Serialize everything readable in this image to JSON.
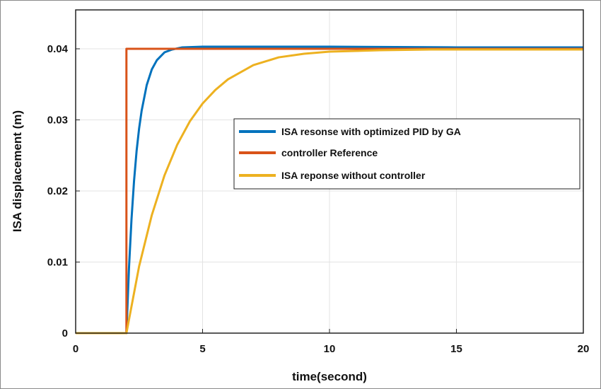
{
  "chart_data": {
    "type": "line",
    "title": "",
    "xlabel": "time(second)",
    "ylabel": "ISA displacement (m)",
    "xlim": [
      0,
      20
    ],
    "ylim": [
      0,
      0.04
    ],
    "x_ticks": [
      0,
      5,
      10,
      15,
      20
    ],
    "x_tick_labels": [
      "0",
      "5",
      "10",
      "15",
      "20"
    ],
    "y_ticks": [
      0,
      0.01,
      0.02,
      0.03,
      0.04
    ],
    "y_tick_labels": [
      "0",
      "0.01",
      "0.02",
      "0.03",
      "0.04"
    ],
    "grid": true,
    "legend_position": "right",
    "series": [
      {
        "name": "ISA resonse with optimized PID by GA",
        "color": "#0072BD",
        "x": [
          0,
          2,
          2.1,
          2.2,
          2.3,
          2.4,
          2.5,
          2.6,
          2.8,
          3.0,
          3.2,
          3.5,
          3.8,
          4.2,
          5,
          7,
          10,
          15,
          20
        ],
        "y": [
          0,
          0,
          0.0091,
          0.016,
          0.0214,
          0.0256,
          0.0288,
          0.0313,
          0.0349,
          0.0371,
          0.0384,
          0.0395,
          0.0399,
          0.0402,
          0.0403,
          0.0403,
          0.0403,
          0.0402,
          0.0402
        ]
      },
      {
        "name": "controller Reference",
        "color": "#D95319",
        "x": [
          0,
          2,
          2,
          20
        ],
        "y": [
          0,
          0,
          0.04,
          0.04
        ]
      },
      {
        "name": "ISA reponse without controller",
        "color": "#EDB120",
        "x": [
          0,
          2,
          2.5,
          3,
          3.5,
          4,
          4.5,
          5,
          5.5,
          6,
          7,
          8,
          9,
          10,
          12,
          14,
          16,
          20
        ],
        "y": [
          0,
          0,
          0.0094,
          0.0166,
          0.0222,
          0.0265,
          0.0298,
          0.0323,
          0.0342,
          0.0357,
          0.0377,
          0.0388,
          0.0393,
          0.0396,
          0.0398,
          0.0399,
          0.0399,
          0.0399
        ]
      }
    ]
  }
}
